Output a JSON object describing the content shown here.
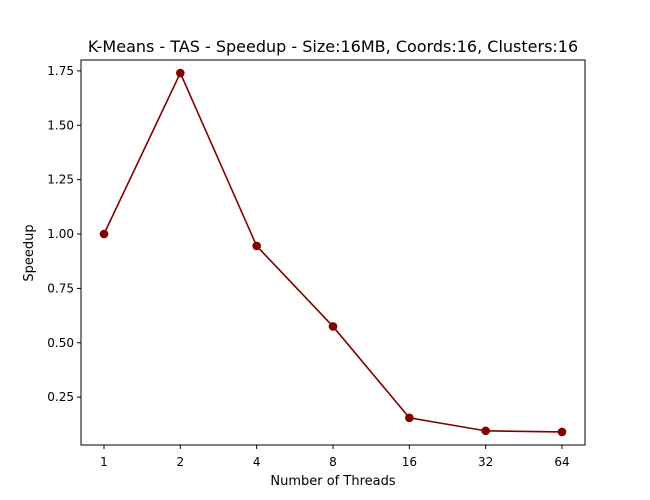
{
  "chart_data": {
    "type": "line",
    "title": "K-Means - TAS - Speedup - Size:16MB, Coords:16, Clusters:16",
    "xlabel": "Number of Threads",
    "ylabel": "Speedup",
    "categories": [
      "1",
      "2",
      "4",
      "8",
      "16",
      "32",
      "64"
    ],
    "series": [
      {
        "values": [
          1.0,
          1.74,
          0.945,
          0.575,
          0.155,
          0.095,
          0.09
        ]
      }
    ],
    "ylim": [
      0.03,
      1.8
    ],
    "yticks": [
      "0.25",
      "0.50",
      "0.75",
      "1.00",
      "1.25",
      "1.50",
      "1.75"
    ],
    "grid": false,
    "line_color": "#800000"
  }
}
